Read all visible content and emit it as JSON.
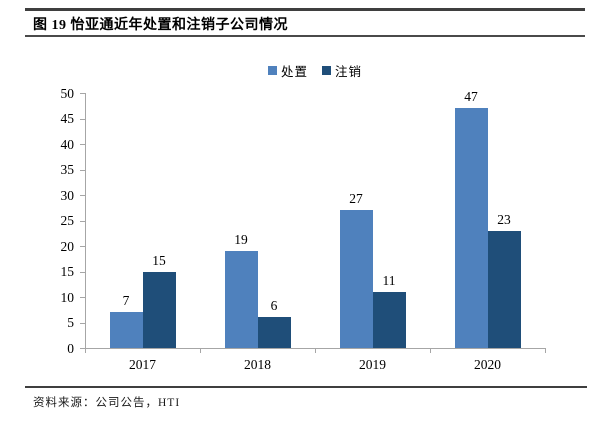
{
  "figure": {
    "title": "图 19 怡亚通近年处置和注销子公司情况",
    "source": "资料来源：公司公告，HTI"
  },
  "chart_data": {
    "type": "bar",
    "title": "图 19 怡亚通近年处置和注销子公司情况",
    "categories": [
      "2017",
      "2018",
      "2019",
      "2020"
    ],
    "series": [
      {
        "name": "处置",
        "color": "#4F81BD",
        "values": [
          7,
          19,
          27,
          47
        ]
      },
      {
        "name": "注销",
        "color": "#1F4E79",
        "values": [
          15,
          6,
          11,
          23
        ]
      }
    ],
    "ylim": [
      0,
      50
    ],
    "yticks": [
      0,
      5,
      10,
      15,
      20,
      25,
      30,
      35,
      40,
      45,
      50
    ],
    "grid": false,
    "data_labels": true,
    "legend_position": "top-center",
    "axis_color": "#A6A6A6",
    "label_color": "#000000"
  }
}
